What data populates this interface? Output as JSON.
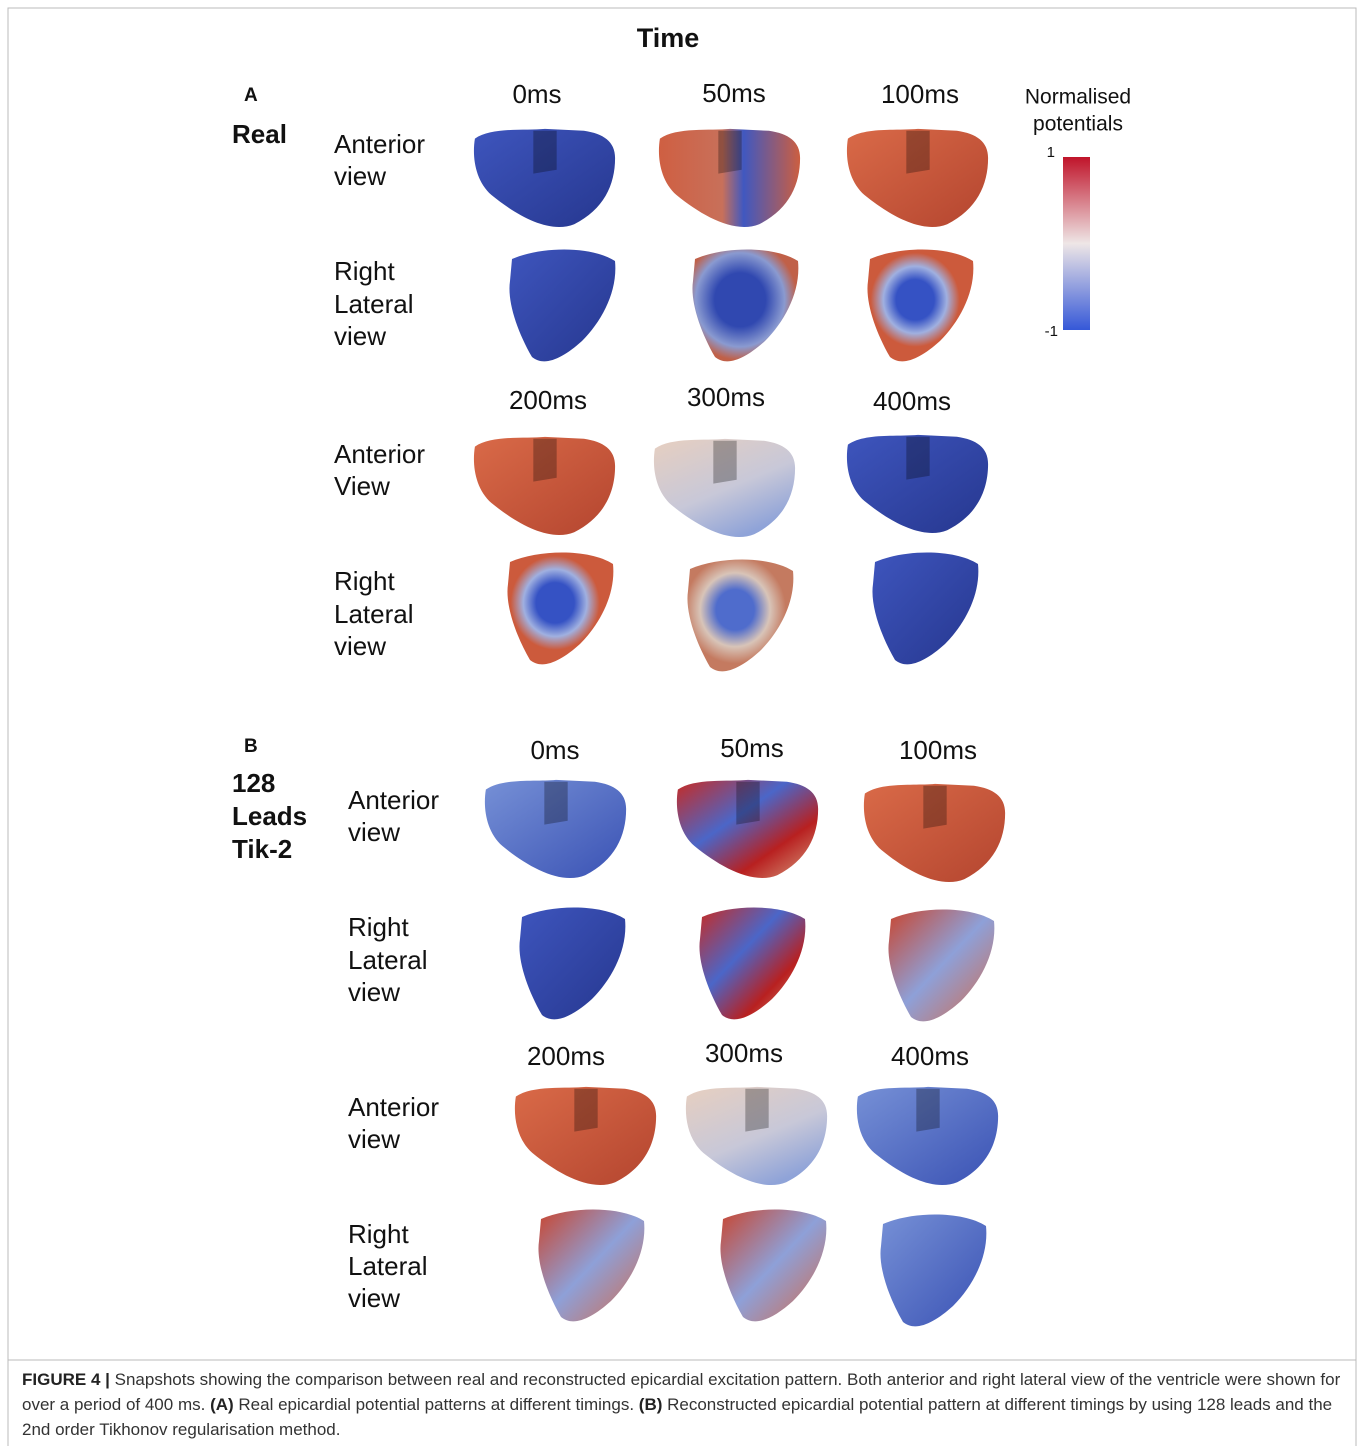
{
  "title": "Time",
  "colorbar": {
    "title": [
      "Normalised",
      "potentials"
    ],
    "max_label": "1",
    "min_label": "-1"
  },
  "panels": [
    {
      "letter": "A",
      "label": [
        "Real"
      ],
      "groups": [
        {
          "times": [
            "0ms",
            "50ms",
            "100ms"
          ],
          "views": [
            [
              "Anterior",
              "view"
            ],
            [
              "Right",
              "Lateral",
              "view"
            ]
          ]
        },
        {
          "times": [
            "200ms",
            "300ms",
            "400ms"
          ],
          "views": [
            [
              "Anterior",
              "View"
            ],
            [
              "Right",
              "Lateral",
              "view"
            ]
          ]
        }
      ]
    },
    {
      "letter": "B",
      "label": [
        "128",
        "Leads",
        "Tik-2"
      ],
      "groups": [
        {
          "times": [
            "0ms",
            "50ms",
            "100ms"
          ],
          "views": [
            [
              "Anterior",
              "view"
            ],
            [
              "Right",
              "Lateral",
              "view"
            ]
          ]
        },
        {
          "times": [
            "200ms",
            "300ms",
            "400ms"
          ],
          "views": [
            [
              "Anterior",
              "view"
            ],
            [
              "Right",
              "Lateral",
              "view"
            ]
          ]
        }
      ]
    }
  ],
  "caption": {
    "label": "FIGURE 4 |",
    "text": "Snapshots showing the comparison between real and reconstructed epicardial excitation pattern. Both anterior and right lateral view of the ventricle were shown for over a period of 400 ms.",
    "a_label": "(A)",
    "a_text": "Real epicardial potential patterns at different timings.",
    "b_label": "(B)",
    "b_text": "Reconstructed epicardial potential pattern at different timings by using 128 leads and the 2nd order Tikhonov regularisation method."
  }
}
